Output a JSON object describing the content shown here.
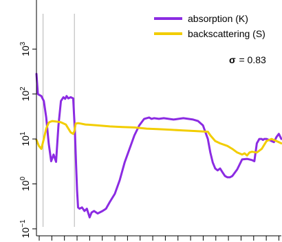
{
  "chart_data": {
    "type": "line",
    "title": "",
    "xlabel": "",
    "ylabel": "",
    "y_scale": "log",
    "ylim": [
      0.07,
      10000
    ],
    "xlim": [
      0,
      100
    ],
    "y_ticks": [
      {
        "base": "10",
        "exp": "−1",
        "value": 0.1
      },
      {
        "base": "10",
        "exp": "0",
        "value": 1
      },
      {
        "base": "10",
        "exp": "1",
        "value": 10
      },
      {
        "base": "10",
        "exp": "2",
        "value": 100
      },
      {
        "base": "10",
        "exp": "3",
        "value": 1000
      }
    ],
    "x_tick_count": 20,
    "x_tick_labels_visible": false,
    "grid": false,
    "legend_position": "top-right",
    "annotation": {
      "symbol": "σ",
      "text": "= 0.83"
    },
    "vertical_markers": [
      2.7,
      15.5
    ],
    "series": [
      {
        "name": "absorption (K)",
        "color": "#8b2be2",
        "x": [
          0,
          0.6,
          1.2,
          2,
          3,
          4,
          5,
          6,
          7,
          8,
          9,
          10,
          11,
          11.7,
          12.3,
          13,
          14,
          15,
          15.7,
          16.2,
          16.6,
          17,
          17.6,
          18.6,
          19.6,
          20.6,
          21.7,
          22.5,
          23.5,
          25,
          27,
          28.4,
          30,
          32,
          34,
          36,
          38,
          40,
          42,
          44,
          46,
          47,
          48,
          50,
          52,
          54,
          56,
          58,
          60,
          62,
          64,
          66,
          68,
          70,
          71,
          72,
          73,
          74,
          75,
          76,
          77,
          78,
          79,
          80,
          82,
          84,
          86,
          88,
          89,
          90,
          91,
          92,
          92.5,
          93,
          94,
          95,
          96,
          97,
          98,
          99,
          100
        ],
        "y": [
          280,
          100,
          95,
          90,
          70,
          30,
          8,
          3.2,
          4.5,
          3.1,
          20,
          70,
          85,
          78,
          90,
          80,
          85,
          80,
          15,
          2.5,
          0.7,
          0.3,
          0.28,
          0.3,
          0.25,
          0.28,
          0.18,
          0.23,
          0.25,
          0.22,
          0.25,
          0.28,
          0.4,
          0.6,
          1.2,
          3,
          6,
          12,
          20,
          28,
          30,
          28,
          29,
          28,
          29,
          28,
          27,
          28,
          29,
          28,
          27,
          25,
          20,
          10,
          5,
          3,
          2.2,
          2,
          2.2,
          1.8,
          1.5,
          1.4,
          1.4,
          1.5,
          2.1,
          3.5,
          3.6,
          3.4,
          3.2,
          8,
          10,
          10,
          9.5,
          10,
          10,
          9.5,
          9,
          8.5,
          11,
          13,
          10
        ]
      },
      {
        "name": "backscattering (S)",
        "color": "#f2cd00",
        "x": [
          0,
          1,
          2,
          3,
          4,
          5,
          5.5,
          6.5,
          8,
          10,
          12,
          14,
          15,
          15.5,
          16,
          17,
          18,
          20,
          25,
          30,
          35,
          40,
          45,
          50,
          55,
          60,
          65,
          70,
          71,
          73,
          75,
          78,
          80,
          82,
          84,
          85,
          86,
          87,
          88,
          90,
          92,
          94,
          96,
          98,
          100
        ],
        "y": [
          9.5,
          7,
          6,
          10,
          17,
          23,
          24,
          25,
          24.5,
          23.5,
          21,
          14,
          13,
          15,
          22,
          22.5,
          22,
          21,
          20,
          19,
          18.5,
          18,
          17,
          16.5,
          16,
          15.5,
          15,
          14.5,
          12,
          9,
          8,
          7,
          6,
          5,
          4.5,
          4.8,
          4.3,
          5,
          5.2,
          5,
          6,
          9,
          10,
          9,
          8
        ]
      }
    ]
  }
}
